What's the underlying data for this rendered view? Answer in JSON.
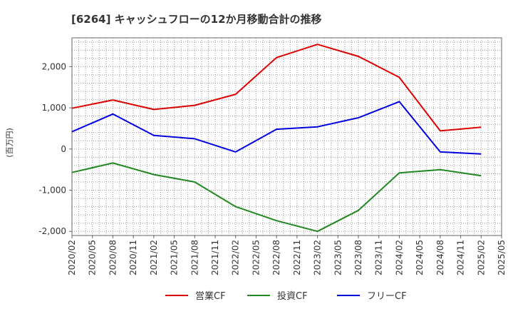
{
  "chart_data": {
    "type": "line",
    "title": "[6264]  キャッシュフローの12か月移動合計の推移",
    "ylabel": "(百万円)",
    "xlabel": "",
    "ylim": [
      -2100,
      2700
    ],
    "yticks": [
      2000,
      1000,
      0,
      -1000,
      -2000
    ],
    "ytick_labels": [
      "2,000",
      "1,000",
      "0",
      "-1,000",
      "-2,000"
    ],
    "x_tick_labels": [
      "2020/02",
      "2020/05",
      "2020/08",
      "2020/11",
      "2021/02",
      "2021/05",
      "2021/08",
      "2021/11",
      "2022/02",
      "2022/05",
      "2022/08",
      "2022/11",
      "2023/02",
      "2023/05",
      "2023/08",
      "2023/11",
      "2024/02",
      "2024/05",
      "2024/08",
      "2024/11",
      "2025/02",
      "2025/05"
    ],
    "grid": true,
    "legend_position": "bottom",
    "series": [
      {
        "name": "営業CF",
        "color": "#dd0000",
        "x": [
          0,
          2,
          4,
          6,
          8,
          10,
          12,
          14,
          16,
          18,
          20
        ],
        "values": [
          990,
          1190,
          960,
          1060,
          1330,
          2220,
          2540,
          2250,
          1740,
          440,
          530
        ]
      },
      {
        "name": "投資CF",
        "color": "#228822",
        "x": [
          0,
          2,
          4,
          6,
          8,
          10,
          12,
          14,
          16,
          18,
          20
        ],
        "values": [
          -570,
          -340,
          -620,
          -800,
          -1400,
          -1740,
          -2000,
          -1490,
          -580,
          -500,
          -650
        ]
      },
      {
        "name": "フリーCF",
        "color": "#0000dd",
        "x": [
          0,
          2,
          4,
          6,
          8,
          10,
          12,
          14,
          16,
          18,
          20
        ],
        "values": [
          420,
          850,
          330,
          250,
          -70,
          480,
          540,
          760,
          1150,
          -70,
          -120
        ]
      }
    ]
  }
}
